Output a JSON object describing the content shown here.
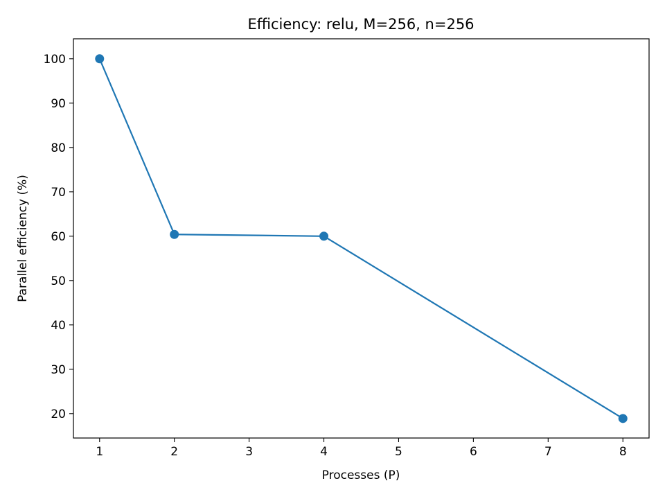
{
  "chart_data": {
    "type": "line",
    "title": "Efficiency: relu, M=256, n=256",
    "xlabel": "Processes (P)",
    "ylabel": "Parallel efficiency (%)",
    "xlim": [
      0.65,
      8.35
    ],
    "ylim": [
      14.5,
      104.5
    ],
    "xticks": [
      1,
      2,
      3,
      4,
      5,
      6,
      7,
      8
    ],
    "yticks": [
      20,
      30,
      40,
      50,
      60,
      70,
      80,
      90,
      100
    ],
    "grid": false,
    "series": [
      {
        "color": "#1f77b4",
        "marker": "circle",
        "x": [
          1,
          2,
          4,
          8
        ],
        "y": [
          100,
          60.4,
          60.0,
          18.9
        ]
      }
    ]
  }
}
